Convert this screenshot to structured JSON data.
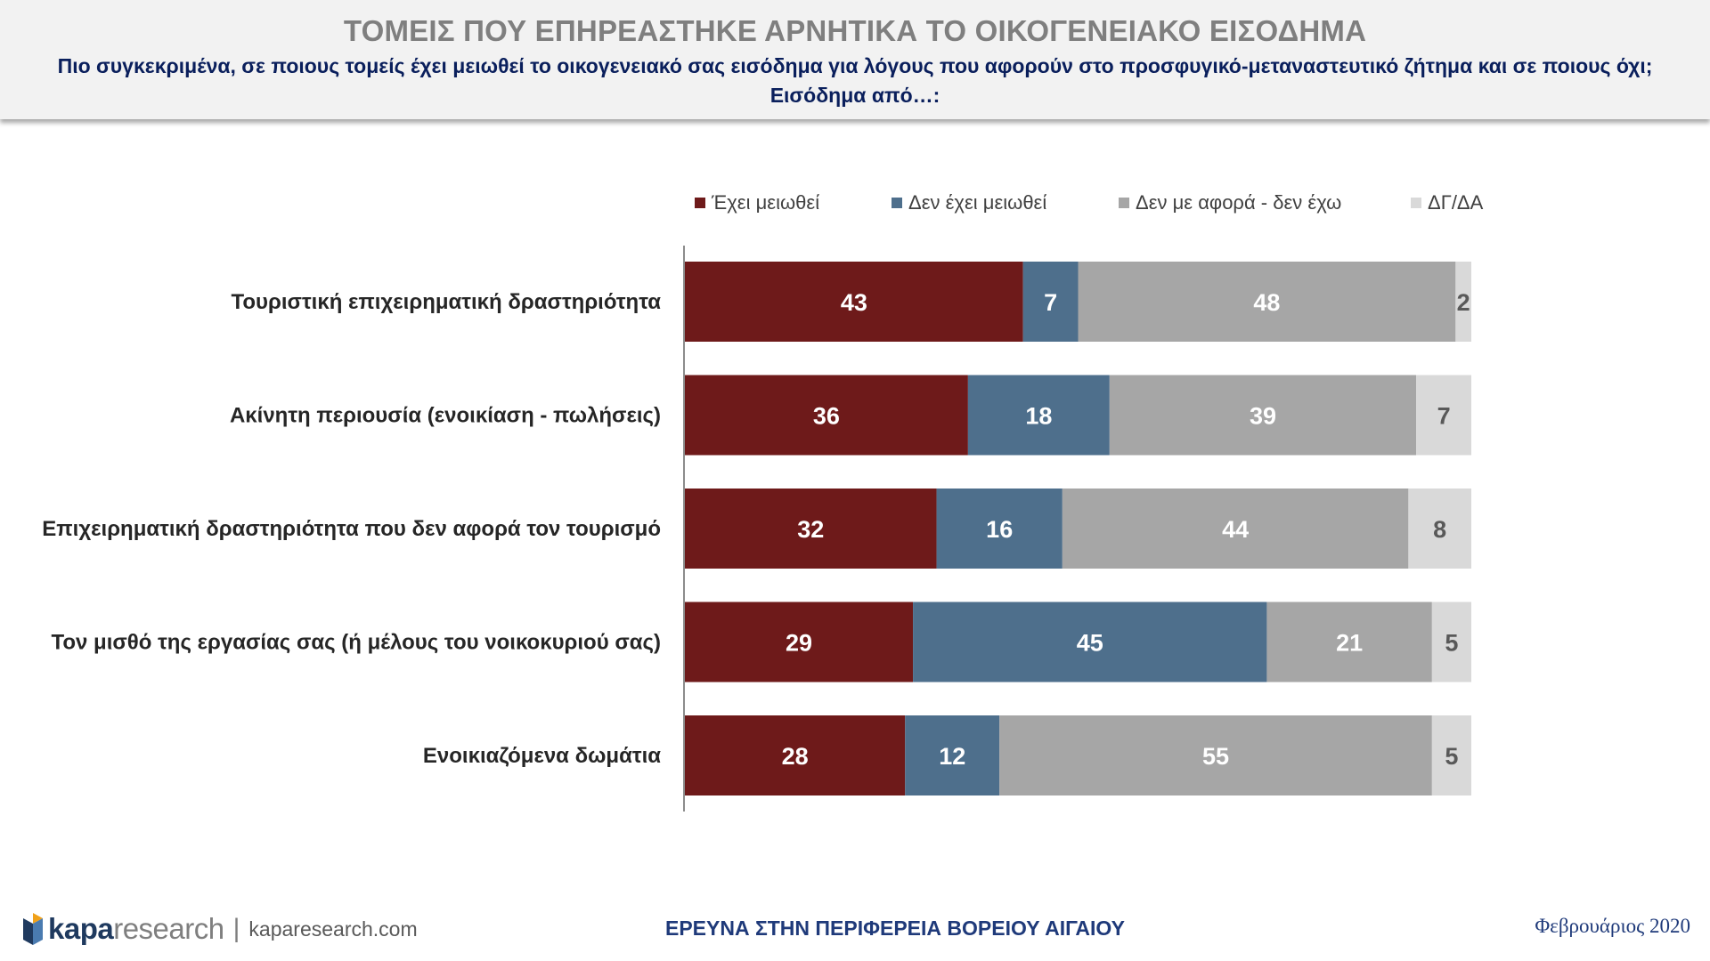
{
  "header": {
    "title": "ΤΟΜΕΙΣ ΠΟΥ ΕΠΗΡΕΑΣΤΗΚΕ ΑΡΝΗΤΙΚΑ ΤΟ ΟΙΚΟΓΕΝΕΙΑΚΟ ΕΙΣΟΔΗΜΑ",
    "subtitle_line1": "Πιο συγκεκριμένα, σε ποιους τομείς έχει μειωθεί το οικογενειακό σας εισόδημα για λόγους που αφορούν στο προσφυγικό-μεταναστευτικό ζήτημα και σε ποιους όχι;",
    "subtitle_line2": "Εισόδημα από…:"
  },
  "legend": [
    {
      "label": "Έχει μειωθεί",
      "color": "#6e1a1a"
    },
    {
      "label": "Δεν έχει μειωθεί",
      "color": "#4e6f8c"
    },
    {
      "label": "Δεν με αφορά - δεν έχω",
      "color": "#a6a6a6"
    },
    {
      "label": "ΔΓ/ΔΑ",
      "color": "#d9d9d9"
    }
  ],
  "chart_data": {
    "type": "bar",
    "orientation": "horizontal",
    "stacked": true,
    "categories": [
      "Τουριστική επιχειρηματική δραστηριότητα",
      "Ακίνητη περιουσία (ενοικίαση - πωλήσεις)",
      "Επιχειρηματική δραστηριότητα που δεν αφορά τον τουρισμό",
      "Τον μισθό της εργασίας σας (ή μέλους του νοικοκυριού σας)",
      "Ενοικιαζόμενα δωμάτια"
    ],
    "series": [
      {
        "name": "Έχει μειωθεί",
        "color": "#6e1a1a",
        "values": [
          43,
          36,
          32,
          29,
          28
        ]
      },
      {
        "name": "Δεν έχει μειωθεί",
        "color": "#4e6f8c",
        "values": [
          7,
          18,
          16,
          45,
          12
        ]
      },
      {
        "name": "Δεν με αφορά - δεν έχω",
        "color": "#a6a6a6",
        "values": [
          48,
          39,
          44,
          21,
          55
        ]
      },
      {
        "name": "ΔΓ/ΔΑ",
        "color": "#d9d9d9",
        "values": [
          2,
          7,
          8,
          5,
          5
        ]
      }
    ],
    "xlim": [
      0,
      100
    ],
    "label_colors": {
      "dark": "#ffffff",
      "light": "#595959"
    }
  },
  "footer": {
    "brand_bold": "kapa",
    "brand_light": "research",
    "separator": "|",
    "url": "kaparesearch.com",
    "center_text": "ΕΡΕΥΝΑ ΣΤΗΝ ΠΕΡΙΦΕΡΕΙΑ ΒΟΡΕΙΟΥ ΑΙΓΑΙΟΥ",
    "date": "Φεβρουάριος 2020"
  }
}
